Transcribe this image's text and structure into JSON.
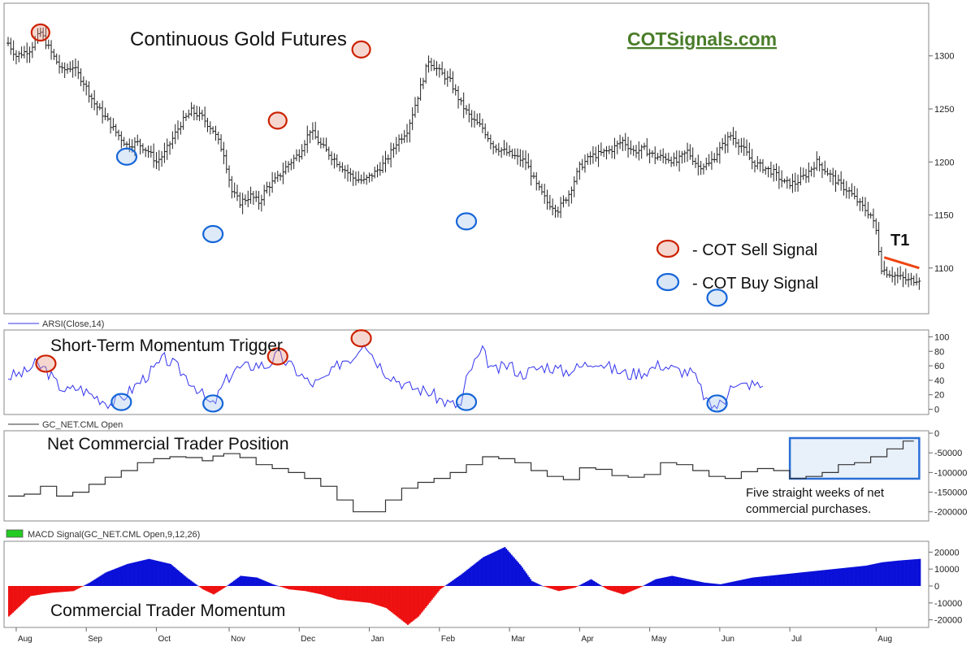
{
  "chart_data": [
    {
      "type": "ohlc",
      "title": "Continuous Gold Futures",
      "brand": "COTSignals.com",
      "ylim": [
        1060,
        1345
      ],
      "yticks": [
        1100,
        1150,
        1200,
        1250,
        1300
      ],
      "x_labels": [
        "Aug",
        "Sep",
        "Oct",
        "Nov",
        "Dec",
        "Jan",
        "Feb",
        "Mar",
        "Apr",
        "May",
        "Jun",
        "Jul",
        "Aug"
      ],
      "close_path": [
        [
          0,
          1312
        ],
        [
          3,
          1300
        ],
        [
          8,
          1306
        ],
        [
          12,
          1322
        ],
        [
          16,
          1303
        ],
        [
          20,
          1286
        ],
        [
          24,
          1290
        ],
        [
          28,
          1275
        ],
        [
          32,
          1255
        ],
        [
          36,
          1242
        ],
        [
          40,
          1228
        ],
        [
          44,
          1216
        ],
        [
          48,
          1218
        ],
        [
          52,
          1210
        ],
        [
          55,
          1200
        ],
        [
          58,
          1208
        ],
        [
          61,
          1222
        ],
        [
          64,
          1236
        ],
        [
          68,
          1248
        ],
        [
          72,
          1242
        ],
        [
          76,
          1230
        ],
        [
          80,
          1208
        ],
        [
          83,
          1172
        ],
        [
          86,
          1162
        ],
        [
          90,
          1168
        ],
        [
          93,
          1162
        ],
        [
          96,
          1176
        ],
        [
          100,
          1185
        ],
        [
          104,
          1198
        ],
        [
          108,
          1208
        ],
        [
          112,
          1230
        ],
        [
          116,
          1216
        ],
        [
          120,
          1205
        ],
        [
          124,
          1195
        ],
        [
          128,
          1185
        ],
        [
          132,
          1182
        ],
        [
          136,
          1190
        ],
        [
          140,
          1200
        ],
        [
          144,
          1218
        ],
        [
          148,
          1230
        ],
        [
          152,
          1262
        ],
        [
          156,
          1296
        ],
        [
          160,
          1285
        ],
        [
          164,
          1276
        ],
        [
          168,
          1255
        ],
        [
          172,
          1240
        ],
        [
          176,
          1232
        ],
        [
          180,
          1215
        ],
        [
          184,
          1210
        ],
        [
          188,
          1205
        ],
        [
          192,
          1200
        ],
        [
          196,
          1178
        ],
        [
          200,
          1162
        ],
        [
          204,
          1155
        ],
        [
          208,
          1170
        ],
        [
          212,
          1195
        ],
        [
          216,
          1205
        ],
        [
          220,
          1208
        ],
        [
          224,
          1212
        ],
        [
          228,
          1220
        ],
        [
          232,
          1210
        ],
        [
          236,
          1212
        ],
        [
          240,
          1205
        ],
        [
          244,
          1204
        ],
        [
          248,
          1200
        ],
        [
          252,
          1210
        ],
        [
          256,
          1196
        ],
        [
          260,
          1198
        ],
        [
          264,
          1212
        ],
        [
          268,
          1225
        ],
        [
          272,
          1215
        ],
        [
          276,
          1200
        ],
        [
          280,
          1195
        ],
        [
          284,
          1190
        ],
        [
          288,
          1180
        ],
        [
          292,
          1180
        ],
        [
          296,
          1188
        ],
        [
          300,
          1200
        ],
        [
          304,
          1190
        ],
        [
          308,
          1180
        ],
        [
          312,
          1172
        ],
        [
          316,
          1160
        ],
        [
          320,
          1150
        ],
        [
          322,
          1135
        ],
        [
          324,
          1100
        ],
        [
          326,
          1096
        ],
        [
          330,
          1092
        ],
        [
          334,
          1088
        ],
        [
          338,
          1090
        ]
      ],
      "sell_signal_label": "- COT Sell Signal",
      "buy_signal_label": "- COT Buy Signal",
      "sell_signal_color": "#cc2200",
      "buy_signal_color": "#1565d8",
      "sell_signals": [
        [
          12,
          1322
        ],
        [
          100,
          1239
        ],
        [
          131,
          1306
        ]
      ],
      "buy_signals": [
        [
          44,
          1205
        ],
        [
          76,
          1132
        ],
        [
          170,
          1144
        ],
        [
          263,
          1072
        ]
      ],
      "trendline": {
        "label": "T1",
        "color": "#ee4411",
        "points": [
          [
            325,
            1110
          ],
          [
            338,
            1100
          ]
        ]
      }
    },
    {
      "type": "line",
      "series_label": "ARSI(Close,14)",
      "title": "Short-Term Momentum Trigger",
      "color": "#3333ee",
      "ylim": [
        -5,
        105
      ],
      "yticks": [
        0,
        20,
        40,
        60,
        80,
        100
      ],
      "x": [
        0,
        6,
        10,
        14,
        18,
        22,
        26,
        30,
        34,
        38,
        42,
        46,
        50,
        54,
        58,
        62,
        66,
        70,
        74,
        76,
        80,
        84,
        88,
        92,
        96,
        100,
        104,
        108,
        112,
        116,
        120,
        124,
        128,
        132,
        136,
        140,
        144,
        148,
        152,
        156,
        160,
        164,
        168,
        170,
        172,
        176,
        180,
        186,
        190,
        196,
        200,
        206,
        212,
        218,
        224,
        230,
        236,
        242,
        248,
        254,
        260,
        263,
        266,
        268,
        270,
        275,
        280
      ],
      "values": [
        45,
        50,
        62,
        55,
        35,
        25,
        30,
        22,
        15,
        8,
        15,
        28,
        42,
        55,
        70,
        60,
        45,
        30,
        10,
        5,
        35,
        55,
        58,
        62,
        60,
        75,
        62,
        50,
        35,
        38,
        50,
        68,
        72,
        96,
        70,
        52,
        42,
        32,
        28,
        24,
        14,
        7,
        5,
        40,
        58,
        80,
        52,
        62,
        48,
        56,
        60,
        52,
        58,
        68,
        56,
        48,
        52,
        62,
        54,
        50,
        5,
        5,
        12,
        40,
        30,
        35,
        32
      ],
      "sell_signals": [
        [
          14,
          63
        ],
        [
          100,
          73
        ],
        [
          131,
          98
        ]
      ],
      "buy_signals": [
        [
          42,
          10
        ],
        [
          76,
          8
        ],
        [
          170,
          10
        ],
        [
          263,
          8
        ]
      ]
    },
    {
      "type": "step",
      "series_label": "GC_NET.CML Open",
      "title": "Net Commercial Trader Position",
      "color": "#333333",
      "ylim": [
        -215000,
        0
      ],
      "yticks": [
        0,
        -50000,
        -100000,
        -150000,
        -200000
      ],
      "ytick_labels": [
        "0",
        "-50000",
        "-100000",
        "-150000",
        "-200000"
      ],
      "x": [
        0,
        6,
        12,
        18,
        24,
        30,
        36,
        42,
        48,
        54,
        60,
        66,
        72,
        76,
        80,
        86,
        92,
        98,
        104,
        110,
        116,
        122,
        128,
        134,
        140,
        146,
        152,
        158,
        164,
        170,
        176,
        182,
        188,
        194,
        200,
        206,
        212,
        218,
        224,
        230,
        236,
        242,
        248,
        254,
        260,
        266,
        272,
        278,
        284,
        290,
        296,
        302,
        308,
        314,
        320,
        326,
        332
      ],
      "values": [
        -160000,
        -155000,
        -135000,
        -160000,
        -150000,
        -130000,
        -112000,
        -95000,
        -75000,
        -65000,
        -60000,
        -62000,
        -70000,
        -58000,
        -52000,
        -62000,
        -80000,
        -90000,
        -100000,
        -115000,
        -135000,
        -170000,
        -200000,
        -200000,
        -170000,
        -140000,
        -125000,
        -115000,
        -100000,
        -80000,
        -60000,
        -65000,
        -75000,
        -95000,
        -110000,
        -118000,
        -88000,
        -92000,
        -108000,
        -112000,
        -105000,
        -75000,
        -80000,
        -95000,
        -110000,
        -115000,
        -98000,
        -90000,
        -95000,
        -115000,
        -110000,
        -100000,
        -80000,
        -75000,
        -60000,
        -40000,
        -20000
      ],
      "annotation": "Five straight weeks of net commercial purchases.",
      "annotation_lines": [
        "Five straight weeks of net",
        "commercial purchases."
      ],
      "highlight_x": [
        290,
        338
      ],
      "highlight_color": "#2a6fd6"
    },
    {
      "type": "histogram",
      "series_label": "MACD Signal(GC_NET.CML Open,9,12,26)",
      "title": "Commercial Trader Momentum",
      "positive_color": "#0a10d8",
      "negative_color": "#ee1111",
      "legend_swatch_color": "#22cc22",
      "ylim": [
        -24000,
        24000
      ],
      "yticks": [
        20000,
        10000,
        0,
        -10000,
        -20000
      ],
      "ytick_labels": [
        "20000",
        "10000",
        "0",
        "-10000",
        "-20000"
      ],
      "x": [
        0,
        8,
        16,
        24,
        30,
        36,
        44,
        52,
        60,
        66,
        72,
        76,
        80,
        86,
        92,
        98,
        104,
        110,
        116,
        122,
        128,
        134,
        140,
        144,
        148,
        152,
        156,
        160,
        168,
        176,
        184,
        190,
        194,
        198,
        204,
        210,
        216,
        222,
        228,
        234,
        240,
        246,
        252,
        258,
        264,
        270,
        276,
        282,
        288,
        294,
        300,
        306,
        312,
        318,
        324,
        330,
        338
      ],
      "values": [
        -18000,
        -6000,
        -4000,
        -3000,
        2000,
        8000,
        13000,
        16000,
        13000,
        5000,
        -2000,
        -5000,
        -1000,
        6000,
        5000,
        1000,
        -2000,
        -3000,
        -5000,
        -8000,
        -9000,
        -10000,
        -13000,
        -18000,
        -23000,
        -18000,
        -10000,
        -2000,
        7000,
        17000,
        23000,
        12000,
        3000,
        0,
        -3000,
        -1000,
        4000,
        -2000,
        -5000,
        -1000,
        4000,
        6000,
        4000,
        2000,
        1000,
        3000,
        5000,
        6000,
        7000,
        8000,
        9000,
        10000,
        11000,
        12000,
        14000,
        15000,
        16000
      ]
    }
  ]
}
